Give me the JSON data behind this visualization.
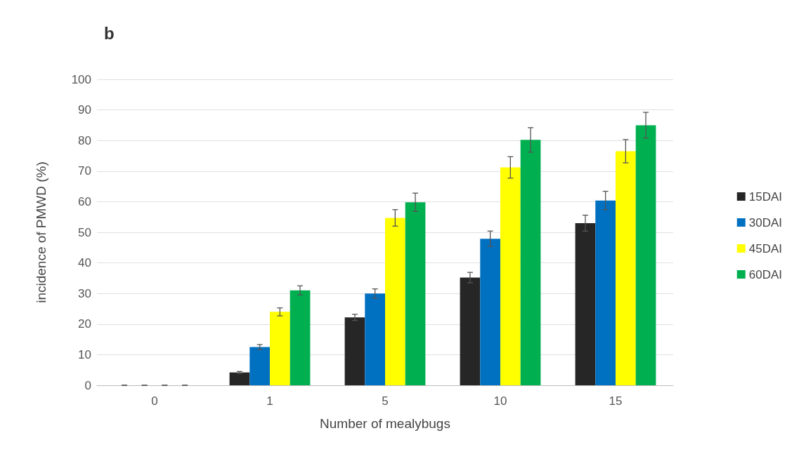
{
  "chart_data": {
    "type": "bar",
    "title": "b",
    "xlabel": "Number of mealybugs",
    "ylabel": "incidence of PMWD (%)",
    "categories": [
      "0",
      "1",
      "5",
      "10",
      "15"
    ],
    "series": [
      {
        "name": "15DAI",
        "color": "#262626",
        "values": [
          0,
          4.2,
          22.2,
          35.2,
          53
        ],
        "errors": [
          0,
          0.3,
          1,
          1.7,
          2.6
        ]
      },
      {
        "name": "30DAI",
        "color": "#0070c0",
        "values": [
          0,
          12.5,
          30,
          47.9,
          60.4
        ],
        "errors": [
          0,
          0.8,
          1.5,
          2.5,
          3
        ]
      },
      {
        "name": "45DAI",
        "color": "#ffff00",
        "values": [
          0,
          24,
          54.7,
          71.2,
          76.5
        ],
        "errors": [
          0,
          1.3,
          2.7,
          3.5,
          3.8
        ]
      },
      {
        "name": "60DAI",
        "color": "#00b050",
        "values": [
          0,
          31,
          59.8,
          80.2,
          85
        ],
        "errors": [
          0,
          1.5,
          3,
          4,
          4.2
        ]
      }
    ],
    "ylim": [
      0,
      100
    ],
    "yticks": [
      0,
      10,
      20,
      30,
      40,
      50,
      60,
      70,
      80,
      90,
      100
    ],
    "grid": "y",
    "legend": "right"
  }
}
